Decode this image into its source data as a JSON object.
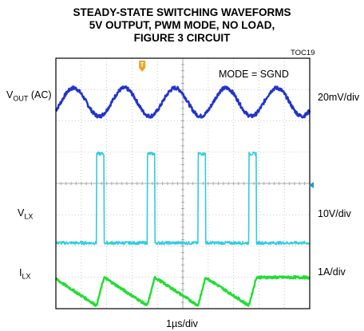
{
  "chart_data": {
    "type": "line",
    "title_lines": [
      "STEADY-STATE SWITCHING WAVEFORMS",
      "5V OUTPUT, PWM MODE, NO LOAD,",
      "FIGURE 3 CIRCUIT"
    ],
    "figure_id": "TOC19",
    "annotation": "MODE = SGND",
    "xlabel": "1µs/div",
    "grid": true,
    "divisions": {
      "x": 10,
      "y": 8
    },
    "xlim": [
      0,
      10
    ],
    "trigger_marker": "T",
    "channels": [
      {
        "name_main": "V",
        "name_sub": "OUT",
        "name_suffix": " (AC)",
        "scale": "20mV/div",
        "color": "#2233cc",
        "waveform": "ripple",
        "baseline_div": 6.6,
        "amplitude_div": 0.45,
        "period_div": 2.0,
        "phase_div": 0.2
      },
      {
        "name_main": "V",
        "name_sub": "LX",
        "name_suffix": "",
        "scale": "10V/div",
        "color": "#33ccdd",
        "waveform": "pulse",
        "low_div": 2.1,
        "high_div": 4.95,
        "rise_times_div": [
          1.6,
          3.6,
          5.6,
          7.6
        ],
        "pulse_width_div": 0.3
      },
      {
        "name_main": "I",
        "name_sub": "LX",
        "name_suffix": "",
        "scale": "1A/div",
        "color": "#22dd33",
        "waveform": "triangle",
        "low_div": 0.1,
        "high_div": 1.0,
        "peak_times_div": [
          1.9,
          3.9,
          5.9,
          7.9,
          9.9
        ],
        "valley_times_div": [
          1.6,
          3.6,
          5.6,
          7.6
        ]
      }
    ]
  }
}
